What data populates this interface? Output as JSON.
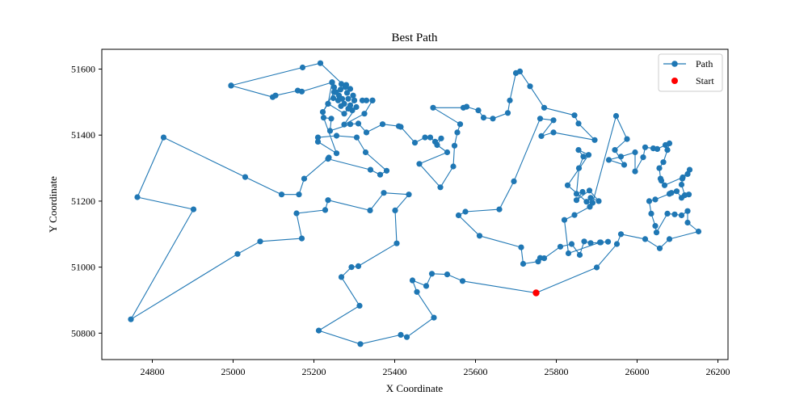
{
  "chart_data": {
    "type": "line",
    "title": "Best Path",
    "xlabel": "X Coordinate",
    "ylabel": "Y Coordinate",
    "xlim": [
      24675,
      26225
    ],
    "ylim": [
      50720,
      51660
    ],
    "xticks": [
      24800,
      25000,
      25200,
      25400,
      25600,
      25800,
      26000,
      26200
    ],
    "yticks": [
      50800,
      51000,
      51200,
      51400,
      51600
    ],
    "grid": false,
    "legend_position": "top-right",
    "series": [
      {
        "name": "Path",
        "color": "#1f77b4",
        "marker": "circle",
        "points": [
          [
            25750,
            50922
          ],
          [
            25568,
            50958
          ],
          [
            25530,
            50978
          ],
          [
            25492,
            50980
          ],
          [
            25478,
            50943
          ],
          [
            25444,
            50960
          ],
          [
            25455,
            50925
          ],
          [
            25497,
            50847
          ],
          [
            25430,
            50788
          ],
          [
            25415,
            50795
          ],
          [
            25315,
            50767
          ],
          [
            25212,
            50808
          ],
          [
            25313,
            50883
          ],
          [
            25268,
            50970
          ],
          [
            25293,
            51000
          ],
          [
            25310,
            51003
          ],
          [
            25405,
            51072
          ],
          [
            25401,
            51172
          ],
          [
            25435,
            51220
          ],
          [
            25373,
            51225
          ],
          [
            25339,
            51172
          ],
          [
            25235,
            51203
          ],
          [
            25228,
            51173
          ],
          [
            25157,
            51163
          ],
          [
            25170,
            51087
          ],
          [
            25067,
            51078
          ],
          [
            25011,
            51040
          ],
          [
            24747,
            50842
          ],
          [
            24902,
            51175
          ],
          [
            24763,
            51212
          ],
          [
            24828,
            51393
          ],
          [
            25030,
            51273
          ],
          [
            25120,
            51220
          ],
          [
            25163,
            51220
          ],
          [
            25176,
            51268
          ],
          [
            25237,
            51332
          ],
          [
            25235,
            51328
          ],
          [
            25340,
            51295
          ],
          [
            25364,
            51280
          ],
          [
            25380,
            51292
          ],
          [
            25328,
            51348
          ],
          [
            25306,
            51393
          ],
          [
            25256,
            51398
          ],
          [
            25210,
            51393
          ],
          [
            25210,
            51380
          ],
          [
            25256,
            51345
          ],
          [
            25224,
            51453
          ],
          [
            25243,
            51450
          ],
          [
            25240,
            51413
          ],
          [
            25290,
            51433
          ],
          [
            25310,
            51435
          ],
          [
            25330,
            51408
          ],
          [
            25370,
            51433
          ],
          [
            25410,
            51427
          ],
          [
            25415,
            51425
          ],
          [
            25450,
            51377
          ],
          [
            25475,
            51393
          ],
          [
            25488,
            51393
          ],
          [
            25500,
            51380
          ],
          [
            25515,
            51390
          ],
          [
            25505,
            51370
          ],
          [
            25530,
            51348
          ],
          [
            25461,
            51313
          ],
          [
            25513,
            51242
          ],
          [
            25545,
            51305
          ],
          [
            25548,
            51368
          ],
          [
            25555,
            51408
          ],
          [
            25562,
            51433
          ],
          [
            25495,
            51483
          ],
          [
            25570,
            51483
          ],
          [
            25578,
            51486
          ],
          [
            25607,
            51475
          ],
          [
            25620,
            51453
          ],
          [
            25643,
            51450
          ],
          [
            25680,
            51467
          ],
          [
            25685,
            51505
          ],
          [
            25700,
            51588
          ],
          [
            25710,
            51593
          ],
          [
            25735,
            51548
          ],
          [
            25770,
            51483
          ],
          [
            25845,
            51460
          ],
          [
            25855,
            51435
          ],
          [
            25895,
            51385
          ],
          [
            25793,
            51408
          ],
          [
            25763,
            51397
          ],
          [
            25793,
            51445
          ],
          [
            25760,
            51450
          ],
          [
            25695,
            51260
          ],
          [
            25659,
            51175
          ],
          [
            25575,
            51168
          ],
          [
            25558,
            51157
          ],
          [
            25610,
            51095
          ],
          [
            25713,
            51060
          ],
          [
            25718,
            51010
          ],
          [
            25755,
            51017
          ],
          [
            25760,
            51028
          ],
          [
            25770,
            51027
          ],
          [
            25810,
            51062
          ],
          [
            25838,
            51070
          ],
          [
            25858,
            51037
          ],
          [
            25869,
            51078
          ],
          [
            25885,
            51073
          ],
          [
            25910,
            51075
          ],
          [
            25928,
            51077
          ],
          [
            25908,
            51075
          ],
          [
            25830,
            51042
          ],
          [
            25820,
            51143
          ],
          [
            25845,
            51158
          ],
          [
            25883,
            51183
          ],
          [
            25885,
            51210
          ],
          [
            25905,
            51200
          ],
          [
            25882,
            51232
          ],
          [
            25850,
            51203
          ],
          [
            25865,
            51228
          ],
          [
            25850,
            51222
          ],
          [
            25856,
            51300
          ],
          [
            25867,
            51335
          ],
          [
            25855,
            51355
          ],
          [
            25880,
            51340
          ],
          [
            25828,
            51248
          ],
          [
            25875,
            51198
          ],
          [
            25890,
            51195
          ],
          [
            25948,
            51458
          ],
          [
            25975,
            51388
          ],
          [
            25945,
            51355
          ],
          [
            25968,
            51310
          ],
          [
            25930,
            51325
          ],
          [
            25960,
            51335
          ],
          [
            25995,
            51348
          ],
          [
            25995,
            51290
          ],
          [
            26015,
            51333
          ],
          [
            26020,
            51363
          ],
          [
            26040,
            51360
          ],
          [
            26050,
            51358
          ],
          [
            26070,
            51370
          ],
          [
            26080,
            51375
          ],
          [
            26075,
            51355
          ],
          [
            26065,
            51318
          ],
          [
            26055,
            51300
          ],
          [
            26058,
            51268
          ],
          [
            26060,
            51262
          ],
          [
            26068,
            51248
          ],
          [
            26113,
            51272
          ],
          [
            26130,
            51295
          ],
          [
            26125,
            51282
          ],
          [
            26112,
            51268
          ],
          [
            26110,
            51250
          ],
          [
            26118,
            51218
          ],
          [
            26128,
            51220
          ],
          [
            26110,
            51210
          ],
          [
            26098,
            51230
          ],
          [
            26085,
            51225
          ],
          [
            26080,
            51222
          ],
          [
            26045,
            51205
          ],
          [
            26030,
            51200
          ],
          [
            26035,
            51162
          ],
          [
            26045,
            51125
          ],
          [
            26048,
            51105
          ],
          [
            26075,
            51162
          ],
          [
            26093,
            51160
          ],
          [
            26110,
            51157
          ],
          [
            26125,
            51170
          ],
          [
            26125,
            51135
          ],
          [
            26152,
            51108
          ],
          [
            26080,
            51085
          ],
          [
            26056,
            51057
          ],
          [
            26020,
            51085
          ],
          [
            25960,
            51100
          ],
          [
            25950,
            51070
          ],
          [
            25900,
            50999
          ],
          [
            25750,
            50922
          ]
        ]
      }
    ],
    "clusters": [
      [
        25278,
        51546
      ],
      [
        25266,
        51538
      ],
      [
        25290,
        51540
      ],
      [
        25262,
        51520
      ],
      [
        25282,
        51528
      ],
      [
        25270,
        51510
      ],
      [
        25255,
        51530
      ],
      [
        25285,
        51510
      ],
      [
        25297,
        51520
      ],
      [
        25260,
        51505
      ],
      [
        25275,
        51495
      ],
      [
        25250,
        51545
      ],
      [
        25245,
        51560
      ],
      [
        25300,
        51505
      ],
      [
        25330,
        51505
      ],
      [
        25320,
        51505
      ],
      [
        25345,
        51505
      ],
      [
        25290,
        51490
      ],
      [
        25280,
        51552
      ],
      [
        25268,
        51555
      ],
      [
        25248,
        51512
      ],
      [
        25267,
        51488
      ],
      [
        25285,
        51480
      ],
      [
        25295,
        51475
      ]
    ],
    "cluster_edges": [
      [
        [
          24995,
          51550
        ],
        [
          25098,
          51515
        ],
        [
          25105,
          51520
        ],
        [
          25160,
          51535
        ],
        [
          25170,
          51532
        ],
        [
          25245,
          51560
        ]
      ],
      [
        [
          25245,
          51560
        ],
        [
          25235,
          51495
        ],
        [
          25222,
          51470
        ],
        [
          25250,
          51530
        ],
        [
          25278,
          51546
        ]
      ],
      [
        [
          25278,
          51546
        ],
        [
          25216,
          51618
        ],
        [
          25172,
          51605
        ],
        [
          24995,
          51550
        ]
      ],
      [
        [
          25305,
          51485
        ],
        [
          25275,
          51432
        ],
        [
          25325,
          51465
        ],
        [
          25345,
          51505
        ]
      ],
      [
        [
          25300,
          51505
        ],
        [
          25275,
          51465
        ],
        [
          25235,
          51495
        ]
      ]
    ],
    "start": {
      "name": "Start",
      "color": "#ff0000",
      "x": 25750,
      "y": 50922
    }
  }
}
